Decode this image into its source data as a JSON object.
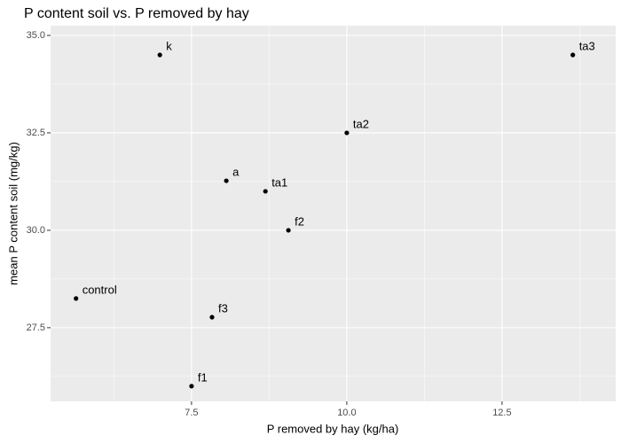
{
  "chart_data": {
    "type": "scatter",
    "title": "P content soil vs. P removed by hay",
    "x_label": "P removed by hay (kg/ha)",
    "y_label": "mean P content soil (mg/kg)",
    "labels": [
      "k",
      "ta3",
      "ta2",
      "a",
      "ta1",
      "f2",
      "control",
      "f3",
      "f1"
    ],
    "x": [
      6.99,
      13.64,
      10.0,
      8.06,
      8.69,
      9.06,
      5.64,
      7.83,
      7.5
    ],
    "y": [
      34.5,
      34.5,
      32.5,
      31.27,
      31.0,
      30.0,
      28.25,
      27.77,
      26.0
    ],
    "color": "#000000",
    "xlim": [
      5.23,
      14.33
    ],
    "ylim": [
      25.61,
      35.25
    ],
    "xticks": [
      7.5,
      {
        "value": 10,
        "label": "10.0"
      },
      12.5
    ],
    "yticks": [
      27.5,
      {
        "value": 30,
        "label": "30.0"
      },
      32.5,
      {
        "value": 35,
        "label": "35.0"
      }
    ],
    "x_minor_grid": [
      6.25,
      8.75,
      11.25,
      13.75
    ],
    "y_minor_grid": [
      26.25,
      28.75,
      31.25,
      33.75
    ],
    "grid": true
  }
}
